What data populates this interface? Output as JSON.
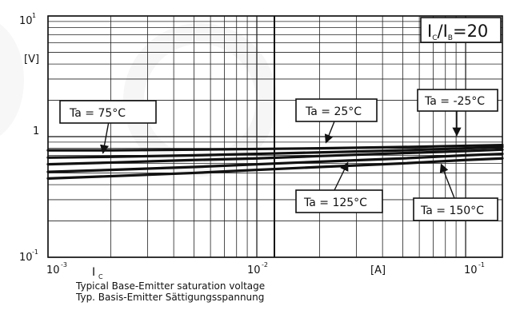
{
  "chart_data": {
    "type": "line",
    "y_axis": {
      "unit_label": "[V]",
      "top_tick": {
        "base": "10",
        "exp": "1"
      },
      "mid_tick": "1",
      "bottom_tick": {
        "base": "10",
        "exp": "-1"
      },
      "scale": "log",
      "ylim": [
        0.1,
        10
      ]
    },
    "x_axis": {
      "left_tick": {
        "base": "10",
        "exp": "-3"
      },
      "mid_tick": {
        "base": "10",
        "exp": "-2"
      },
      "right_tick": {
        "base": "10",
        "exp": "-1"
      },
      "quantity_label": "I",
      "quantity_sub": "C",
      "unit_label": "[A]",
      "scale": "log",
      "xlim": [
        0.001,
        0.15
      ]
    },
    "condition": {
      "main1": "I",
      "sub1": "C",
      "main2": "/I",
      "sub2": "B",
      "tail": "=20"
    },
    "series": [
      {
        "name": "Ta = 75°C",
        "x": [
          0.001,
          0.002,
          0.005,
          0.01,
          0.02,
          0.05,
          0.1,
          0.15
        ],
        "y": [
          0.77,
          0.77,
          0.78,
          0.79,
          0.8,
          0.82,
          0.84,
          0.85
        ]
      },
      {
        "name": "Ta = 25°C",
        "x": [
          0.001,
          0.002,
          0.005,
          0.01,
          0.02,
          0.05,
          0.1,
          0.15
        ],
        "y": [
          0.67,
          0.68,
          0.7,
          0.72,
          0.74,
          0.77,
          0.8,
          0.82
        ]
      },
      {
        "name": "Ta = -25°C",
        "x": [
          0.001,
          0.002,
          0.005,
          0.01,
          0.02,
          0.05,
          0.1,
          0.15
        ],
        "y": [
          0.59,
          0.61,
          0.64,
          0.66,
          0.69,
          0.73,
          0.76,
          0.78
        ]
      },
      {
        "name": "Ta = 125°C",
        "x": [
          0.001,
          0.002,
          0.005,
          0.01,
          0.02,
          0.05,
          0.1,
          0.15
        ],
        "y": [
          0.51,
          0.53,
          0.56,
          0.59,
          0.62,
          0.66,
          0.7,
          0.72
        ]
      },
      {
        "name": "Ta = 150°C",
        "x": [
          0.001,
          0.002,
          0.005,
          0.01,
          0.02,
          0.05,
          0.1,
          0.15
        ],
        "y": [
          0.45,
          0.47,
          0.5,
          0.53,
          0.56,
          0.6,
          0.64,
          0.66
        ]
      }
    ],
    "annotations": [
      "Ta = 75°C",
      "Ta = 25°C",
      "Ta = -25°C",
      "Ta = 125°C",
      "Ta = 150°C"
    ],
    "caption_lines": [
      "Typical Base-Emitter saturation voltage",
      "Typ. Basis-Emitter Sättigungsspannung"
    ],
    "grid": true
  }
}
